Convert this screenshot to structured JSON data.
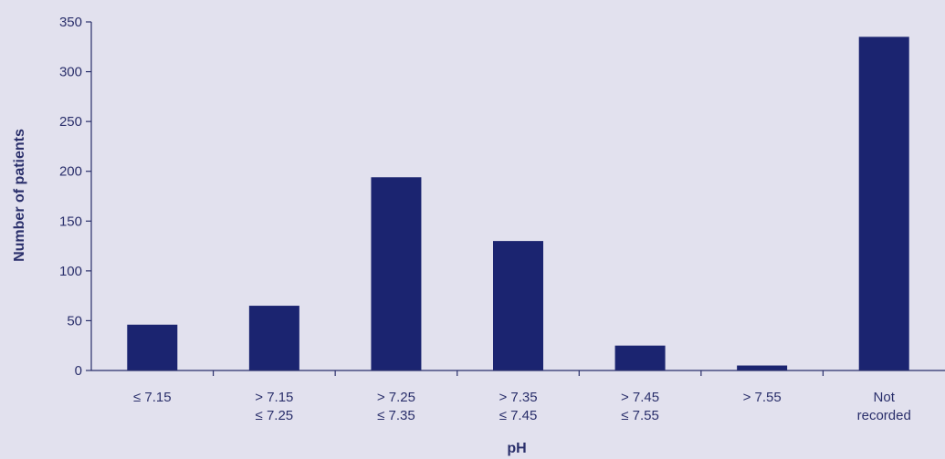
{
  "chart_data": {
    "type": "bar",
    "title": "",
    "xlabel": "pH",
    "ylabel": "Number of patients",
    "categories": [
      [
        "≤ 7.15"
      ],
      [
        "> 7.15",
        "≤ 7.25"
      ],
      [
        "> 7.25",
        "≤ 7.35"
      ],
      [
        "> 7.35",
        "≤ 7.45"
      ],
      [
        "> 7.45",
        "≤ 7.55"
      ],
      [
        "> 7.55"
      ],
      [
        "Not",
        "recorded"
      ]
    ],
    "values": [
      46,
      65,
      194,
      130,
      25,
      5,
      335
    ],
    "ylim": [
      0,
      350
    ],
    "yticks": [
      0,
      50,
      100,
      150,
      200,
      250,
      300,
      350
    ],
    "grid": false,
    "legend": "none",
    "colors": {
      "bar": "#1b2470",
      "axis": "#2a2f6b",
      "background": "#e2e1ee"
    }
  }
}
